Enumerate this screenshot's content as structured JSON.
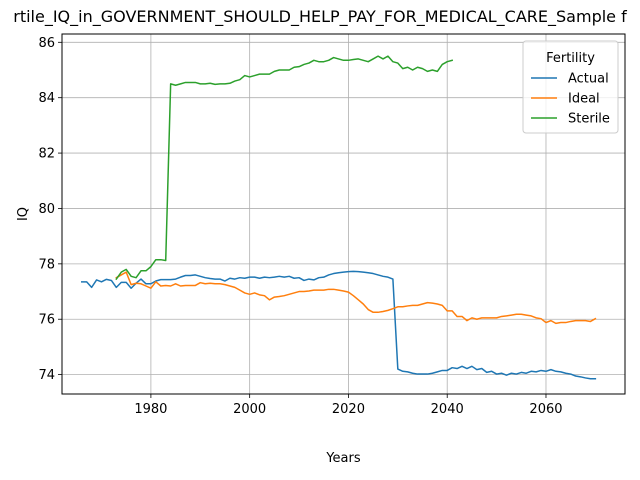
{
  "chart_data": {
    "type": "line",
    "title": "rtile_IQ_in_GOVERNMENT_SHOULD_HELP_PAY_FOR_MEDICAL_CARE_Sample f",
    "xlabel": "Years",
    "ylabel": "IQ",
    "xlim": [
      1962,
      2076
    ],
    "ylim": [
      73.3,
      86.3
    ],
    "xticks": [
      1980,
      2000,
      2020,
      2040,
      2060
    ],
    "yticks": [
      74,
      76,
      78,
      80,
      82,
      84,
      86
    ],
    "grid": true,
    "legend": {
      "title": "Fertility",
      "placement": "top-right"
    },
    "series": [
      {
        "name": "Actual",
        "color": "#1f77b4",
        "x": [
          1966,
          1967,
          1968,
          1969,
          1970,
          1971,
          1972,
          1973,
          1974,
          1975,
          1976,
          1977,
          1978,
          1979,
          1980,
          1981,
          1982,
          1983,
          1984,
          1985,
          1986,
          1987,
          1988,
          1989,
          1990,
          1991,
          1992,
          1993,
          1994,
          1995,
          1996,
          1997,
          1998,
          1999,
          2000,
          2001,
          2002,
          2003,
          2004,
          2005,
          2006,
          2007,
          2008,
          2009,
          2010,
          2011,
          2012,
          2013,
          2014,
          2015,
          2016,
          2017,
          2018,
          2019,
          2020,
          2021,
          2022,
          2023,
          2024,
          2025,
          2026,
          2027,
          2028,
          2029,
          2030,
          2031,
          2032,
          2033,
          2034,
          2035,
          2036,
          2037,
          2038,
          2039,
          2040,
          2041,
          2042,
          2043,
          2044,
          2045,
          2046,
          2047,
          2048,
          2049,
          2050,
          2051,
          2052,
          2053,
          2054,
          2055,
          2056,
          2057,
          2058,
          2059,
          2060,
          2061,
          2062,
          2063,
          2064,
          2065,
          2066,
          2067,
          2068,
          2069,
          2070
        ],
        "y": [
          77.35,
          77.35,
          77.15,
          77.42,
          77.35,
          77.44,
          77.4,
          77.15,
          77.33,
          77.33,
          77.12,
          77.3,
          77.45,
          77.28,
          77.28,
          77.38,
          77.43,
          77.43,
          77.43,
          77.45,
          77.52,
          77.58,
          77.58,
          77.6,
          77.55,
          77.5,
          77.47,
          77.45,
          77.45,
          77.38,
          77.48,
          77.45,
          77.5,
          77.48,
          77.52,
          77.52,
          77.48,
          77.52,
          77.5,
          77.52,
          77.55,
          77.52,
          77.55,
          77.48,
          77.5,
          77.4,
          77.45,
          77.42,
          77.5,
          77.52,
          77.6,
          77.65,
          77.68,
          77.7,
          77.72,
          77.73,
          77.72,
          77.7,
          77.68,
          77.65,
          77.6,
          77.55,
          77.52,
          77.45,
          74.2,
          74.12,
          74.1,
          74.05,
          74.02,
          74.02,
          74.02,
          74.05,
          74.1,
          74.15,
          74.15,
          74.25,
          74.22,
          74.3,
          74.22,
          74.3,
          74.18,
          74.22,
          74.08,
          74.12,
          74.02,
          74.05,
          73.98,
          74.05,
          74.02,
          74.08,
          74.05,
          74.12,
          74.1,
          74.15,
          74.12,
          74.18,
          74.12,
          74.1,
          74.05,
          74.02,
          73.95,
          73.92,
          73.88,
          73.85,
          73.85
        ]
      },
      {
        "name": "Ideal",
        "color": "#ff7f0e",
        "x": [
          1973,
          1974,
          1975,
          1976,
          1977,
          1978,
          1979,
          1980,
          1981,
          1982,
          1983,
          1984,
          1985,
          1986,
          1987,
          1988,
          1989,
          1990,
          1991,
          1992,
          1993,
          1994,
          1995,
          1996,
          1997,
          1998,
          1999,
          2000,
          2001,
          2002,
          2003,
          2004,
          2005,
          2006,
          2007,
          2008,
          2009,
          2010,
          2011,
          2012,
          2013,
          2014,
          2015,
          2016,
          2017,
          2018,
          2019,
          2020,
          2021,
          2022,
          2023,
          2024,
          2025,
          2026,
          2027,
          2028,
          2029,
          2030,
          2031,
          2032,
          2033,
          2034,
          2035,
          2036,
          2037,
          2038,
          2039,
          2040,
          2041,
          2042,
          2043,
          2044,
          2045,
          2046,
          2047,
          2048,
          2049,
          2050,
          2051,
          2052,
          2053,
          2054,
          2055,
          2056,
          2057,
          2058,
          2059,
          2060,
          2061,
          2062,
          2063,
          2064,
          2065,
          2066,
          2067,
          2068,
          2069,
          2070
        ],
        "y": [
          77.5,
          77.6,
          77.7,
          77.25,
          77.3,
          77.28,
          77.2,
          77.12,
          77.35,
          77.2,
          77.22,
          77.2,
          77.28,
          77.2,
          77.22,
          77.22,
          77.22,
          77.32,
          77.28,
          77.3,
          77.28,
          77.28,
          77.25,
          77.2,
          77.15,
          77.05,
          76.95,
          76.9,
          76.95,
          76.88,
          76.85,
          76.7,
          76.8,
          76.82,
          76.85,
          76.9,
          76.95,
          77.0,
          77.0,
          77.02,
          77.05,
          77.05,
          77.05,
          77.08,
          77.08,
          77.05,
          77.02,
          76.98,
          76.85,
          76.7,
          76.55,
          76.35,
          76.25,
          76.25,
          76.28,
          76.32,
          76.38,
          76.45,
          76.45,
          76.48,
          76.5,
          76.5,
          76.55,
          76.6,
          76.58,
          76.55,
          76.5,
          76.3,
          76.3,
          76.1,
          76.1,
          75.95,
          76.05,
          76.0,
          76.05,
          76.05,
          76.05,
          76.05,
          76.1,
          76.12,
          76.15,
          76.18,
          76.18,
          76.15,
          76.12,
          76.05,
          76.02,
          75.88,
          75.95,
          75.85,
          75.88,
          75.88,
          75.92,
          75.95,
          75.95,
          75.95,
          75.92,
          76.02
        ]
      },
      {
        "name": "Sterile",
        "color": "#2ca02c",
        "x": [
          1973,
          1974,
          1975,
          1976,
          1977,
          1978,
          1979,
          1980,
          1981,
          1982,
          1983,
          1984,
          1985,
          1986,
          1987,
          1988,
          1989,
          1990,
          1991,
          1992,
          1993,
          1994,
          1995,
          1996,
          1997,
          1998,
          1999,
          2000,
          2001,
          2002,
          2003,
          2004,
          2005,
          2006,
          2007,
          2008,
          2009,
          2010,
          2011,
          2012,
          2013,
          2014,
          2015,
          2016,
          2017,
          2018,
          2019,
          2020,
          2021,
          2022,
          2023,
          2024,
          2025,
          2026,
          2027,
          2028,
          2029,
          2030,
          2031,
          2032,
          2033,
          2034,
          2035,
          2036,
          2037,
          2038,
          2039,
          2040,
          2041
        ],
        "y": [
          77.45,
          77.7,
          77.8,
          77.55,
          77.5,
          77.75,
          77.75,
          77.9,
          78.15,
          78.15,
          78.12,
          84.5,
          84.45,
          84.5,
          84.55,
          84.55,
          84.55,
          84.5,
          84.5,
          84.52,
          84.48,
          84.5,
          84.5,
          84.52,
          84.6,
          84.65,
          84.8,
          84.75,
          84.8,
          84.85,
          84.85,
          84.85,
          84.95,
          85.0,
          85.0,
          85.0,
          85.1,
          85.12,
          85.2,
          85.25,
          85.35,
          85.3,
          85.3,
          85.35,
          85.45,
          85.4,
          85.35,
          85.35,
          85.38,
          85.4,
          85.35,
          85.3,
          85.4,
          85.5,
          85.4,
          85.5,
          85.3,
          85.25,
          85.05,
          85.1,
          85.0,
          85.1,
          85.05,
          84.95,
          85.0,
          84.95,
          85.2,
          85.3,
          85.35
        ]
      }
    ]
  }
}
